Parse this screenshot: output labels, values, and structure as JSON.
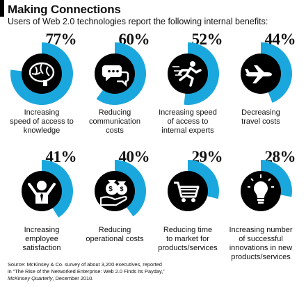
{
  "header": {
    "title": "Making Connections",
    "subtitle": "Users of Web 2.0 technologies report the following internal benefits:"
  },
  "chart_data": {
    "type": "donut-grid",
    "title": "Making Connections",
    "subtitle": "Users of Web 2.0 technologies report the following internal benefits:",
    "items": [
      {
        "pct_label": "77%",
        "value": 77,
        "label_lines": [
          "Increasing",
          "speed of access to",
          "knowledge"
        ],
        "icon": "brain-icon"
      },
      {
        "pct_label": "60%",
        "value": 60,
        "label_lines": [
          "Reducing",
          "communication",
          "costs"
        ],
        "icon": "speech-bubbles-icon"
      },
      {
        "pct_label": "52%",
        "value": 52,
        "label_lines": [
          "Increasing speed",
          "of access to",
          "internal experts"
        ],
        "icon": "running-person-icon"
      },
      {
        "pct_label": "44%",
        "value": 44,
        "label_lines": [
          "Decreasing",
          "travel costs"
        ],
        "icon": "airplane-icon"
      },
      {
        "pct_label": "41%",
        "value": 41,
        "label_lines": [
          "Increasing",
          "employee",
          "satisfaction"
        ],
        "icon": "cheering-employee-icon"
      },
      {
        "pct_label": "40%",
        "value": 40,
        "label_lines": [
          "Reducing",
          "operational costs"
        ],
        "icon": "money-bags-icon"
      },
      {
        "pct_label": "29%",
        "value": 29,
        "label_lines": [
          "Reducing time",
          "to market for",
          "products/services"
        ],
        "icon": "shopping-cart-icon"
      },
      {
        "pct_label": "28%",
        "value": 28,
        "label_lines": [
          "Increasing number",
          "of successful",
          "innovations in new",
          "products/services"
        ],
        "icon": "lightbulb-icon"
      }
    ],
    "colors": {
      "filled": "#1aa7dd",
      "track": "#ffffff",
      "center": "#000000",
      "icon": "#ffffff"
    }
  },
  "source": {
    "line1": "Source: McKinsey & Co. survey of about 3,200 executives, reported",
    "line2": "in “The Rise of the Networked Enterprise: Web 2.0 Finds Its Payday,”",
    "journal": "McKinsey Quarterly",
    "date": ", December 2010."
  }
}
